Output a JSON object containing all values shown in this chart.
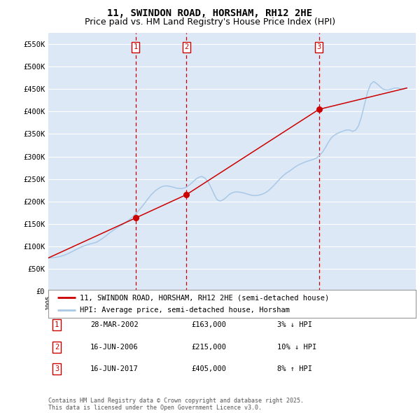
{
  "title": "11, SWINDON ROAD, HORSHAM, RH12 2HE",
  "subtitle": "Price paid vs. HM Land Registry's House Price Index (HPI)",
  "ylim": [
    0,
    575000
  ],
  "yticks": [
    0,
    50000,
    100000,
    150000,
    200000,
    250000,
    300000,
    350000,
    400000,
    450000,
    500000,
    550000
  ],
  "ytick_labels": [
    "£0",
    "£50K",
    "£100K",
    "£150K",
    "£200K",
    "£250K",
    "£300K",
    "£350K",
    "£400K",
    "£450K",
    "£500K",
    "£550K"
  ],
  "background_color": "#ffffff",
  "plot_bg_color": "#dce8f5",
  "grid_color": "#ffffff",
  "sale_color": "#cc0000",
  "hpi_color": "#a8c8e8",
  "vline_color": "#cc0000",
  "transaction_dates": [
    2002.24,
    2006.46,
    2017.46
  ],
  "transaction_prices": [
    163000,
    215000,
    405000
  ],
  "transaction_labels": [
    "1",
    "2",
    "3"
  ],
  "legend_sale_label": "11, SWINDON ROAD, HORSHAM, RH12 2HE (semi-detached house)",
  "legend_hpi_label": "HPI: Average price, semi-detached house, Horsham",
  "table_rows": [
    [
      "1",
      "28-MAR-2002",
      "£163,000",
      "3% ↓ HPI"
    ],
    [
      "2",
      "16-JUN-2006",
      "£215,000",
      "10% ↓ HPI"
    ],
    [
      "3",
      "16-JUN-2017",
      "£405,000",
      "8% ↑ HPI"
    ]
  ],
  "footer_text": "Contains HM Land Registry data © Crown copyright and database right 2025.\nThis data is licensed under the Open Government Licence v3.0.",
  "title_fontsize": 10,
  "subtitle_fontsize": 9,
  "hpi_data_years": [
    1995.0,
    1995.25,
    1995.5,
    1995.75,
    1996.0,
    1996.25,
    1996.5,
    1996.75,
    1997.0,
    1997.25,
    1997.5,
    1997.75,
    1998.0,
    1998.25,
    1998.5,
    1998.75,
    1999.0,
    1999.25,
    1999.5,
    1999.75,
    2000.0,
    2000.25,
    2000.5,
    2000.75,
    2001.0,
    2001.25,
    2001.5,
    2001.75,
    2002.0,
    2002.25,
    2002.5,
    2002.75,
    2003.0,
    2003.25,
    2003.5,
    2003.75,
    2004.0,
    2004.25,
    2004.5,
    2004.75,
    2005.0,
    2005.25,
    2005.5,
    2005.75,
    2006.0,
    2006.25,
    2006.5,
    2006.75,
    2007.0,
    2007.25,
    2007.5,
    2007.75,
    2008.0,
    2008.25,
    2008.5,
    2008.75,
    2009.0,
    2009.25,
    2009.5,
    2009.75,
    2010.0,
    2010.25,
    2010.5,
    2010.75,
    2011.0,
    2011.25,
    2011.5,
    2011.75,
    2012.0,
    2012.25,
    2012.5,
    2012.75,
    2013.0,
    2013.25,
    2013.5,
    2013.75,
    2014.0,
    2014.25,
    2014.5,
    2014.75,
    2015.0,
    2015.25,
    2015.5,
    2015.75,
    2016.0,
    2016.25,
    2016.5,
    2016.75,
    2017.0,
    2017.25,
    2017.5,
    2017.75,
    2018.0,
    2018.25,
    2018.5,
    2018.75,
    2019.0,
    2019.25,
    2019.5,
    2019.75,
    2020.0,
    2020.25,
    2020.5,
    2020.75,
    2021.0,
    2021.25,
    2021.5,
    2021.75,
    2022.0,
    2022.25,
    2022.5,
    2022.75,
    2023.0,
    2023.25,
    2023.5,
    2023.75,
    2024.0,
    2024.25,
    2024.5,
    2024.75
  ],
  "hpi_data_values": [
    74000,
    74500,
    75000,
    76000,
    77500,
    79500,
    82000,
    85000,
    88500,
    92000,
    95500,
    98500,
    101000,
    103500,
    105500,
    107000,
    109000,
    113000,
    117500,
    122500,
    128000,
    133000,
    137500,
    142000,
    146000,
    150000,
    155000,
    160000,
    165500,
    172000,
    179500,
    187500,
    196000,
    205000,
    213500,
    220500,
    226000,
    230500,
    233500,
    234500,
    234000,
    232500,
    230500,
    229000,
    228500,
    229500,
    232500,
    237500,
    243500,
    249500,
    254000,
    255500,
    252000,
    244000,
    231500,
    216500,
    204000,
    200500,
    203500,
    208500,
    215000,
    219000,
    221000,
    221000,
    220000,
    218500,
    216500,
    214500,
    213000,
    213000,
    214000,
    216000,
    219000,
    223500,
    229500,
    236500,
    243500,
    251000,
    257500,
    263000,
    267000,
    272000,
    277000,
    281000,
    284000,
    287000,
    289500,
    291500,
    293500,
    296500,
    302000,
    309500,
    320000,
    332000,
    342000,
    347500,
    351500,
    354500,
    357000,
    359000,
    359000,
    356000,
    358500,
    368500,
    389500,
    416500,
    443500,
    461000,
    467000,
    462500,
    456500,
    450500,
    448500,
    448500,
    450500,
    452500,
    452500,
    450500,
    450500,
    452500
  ],
  "sale_anchor_years": [
    1995.0,
    2002.24,
    2006.46,
    2017.46,
    2024.75
  ],
  "sale_anchor_prices": [
    74000,
    163000,
    215000,
    405000,
    452500
  ]
}
